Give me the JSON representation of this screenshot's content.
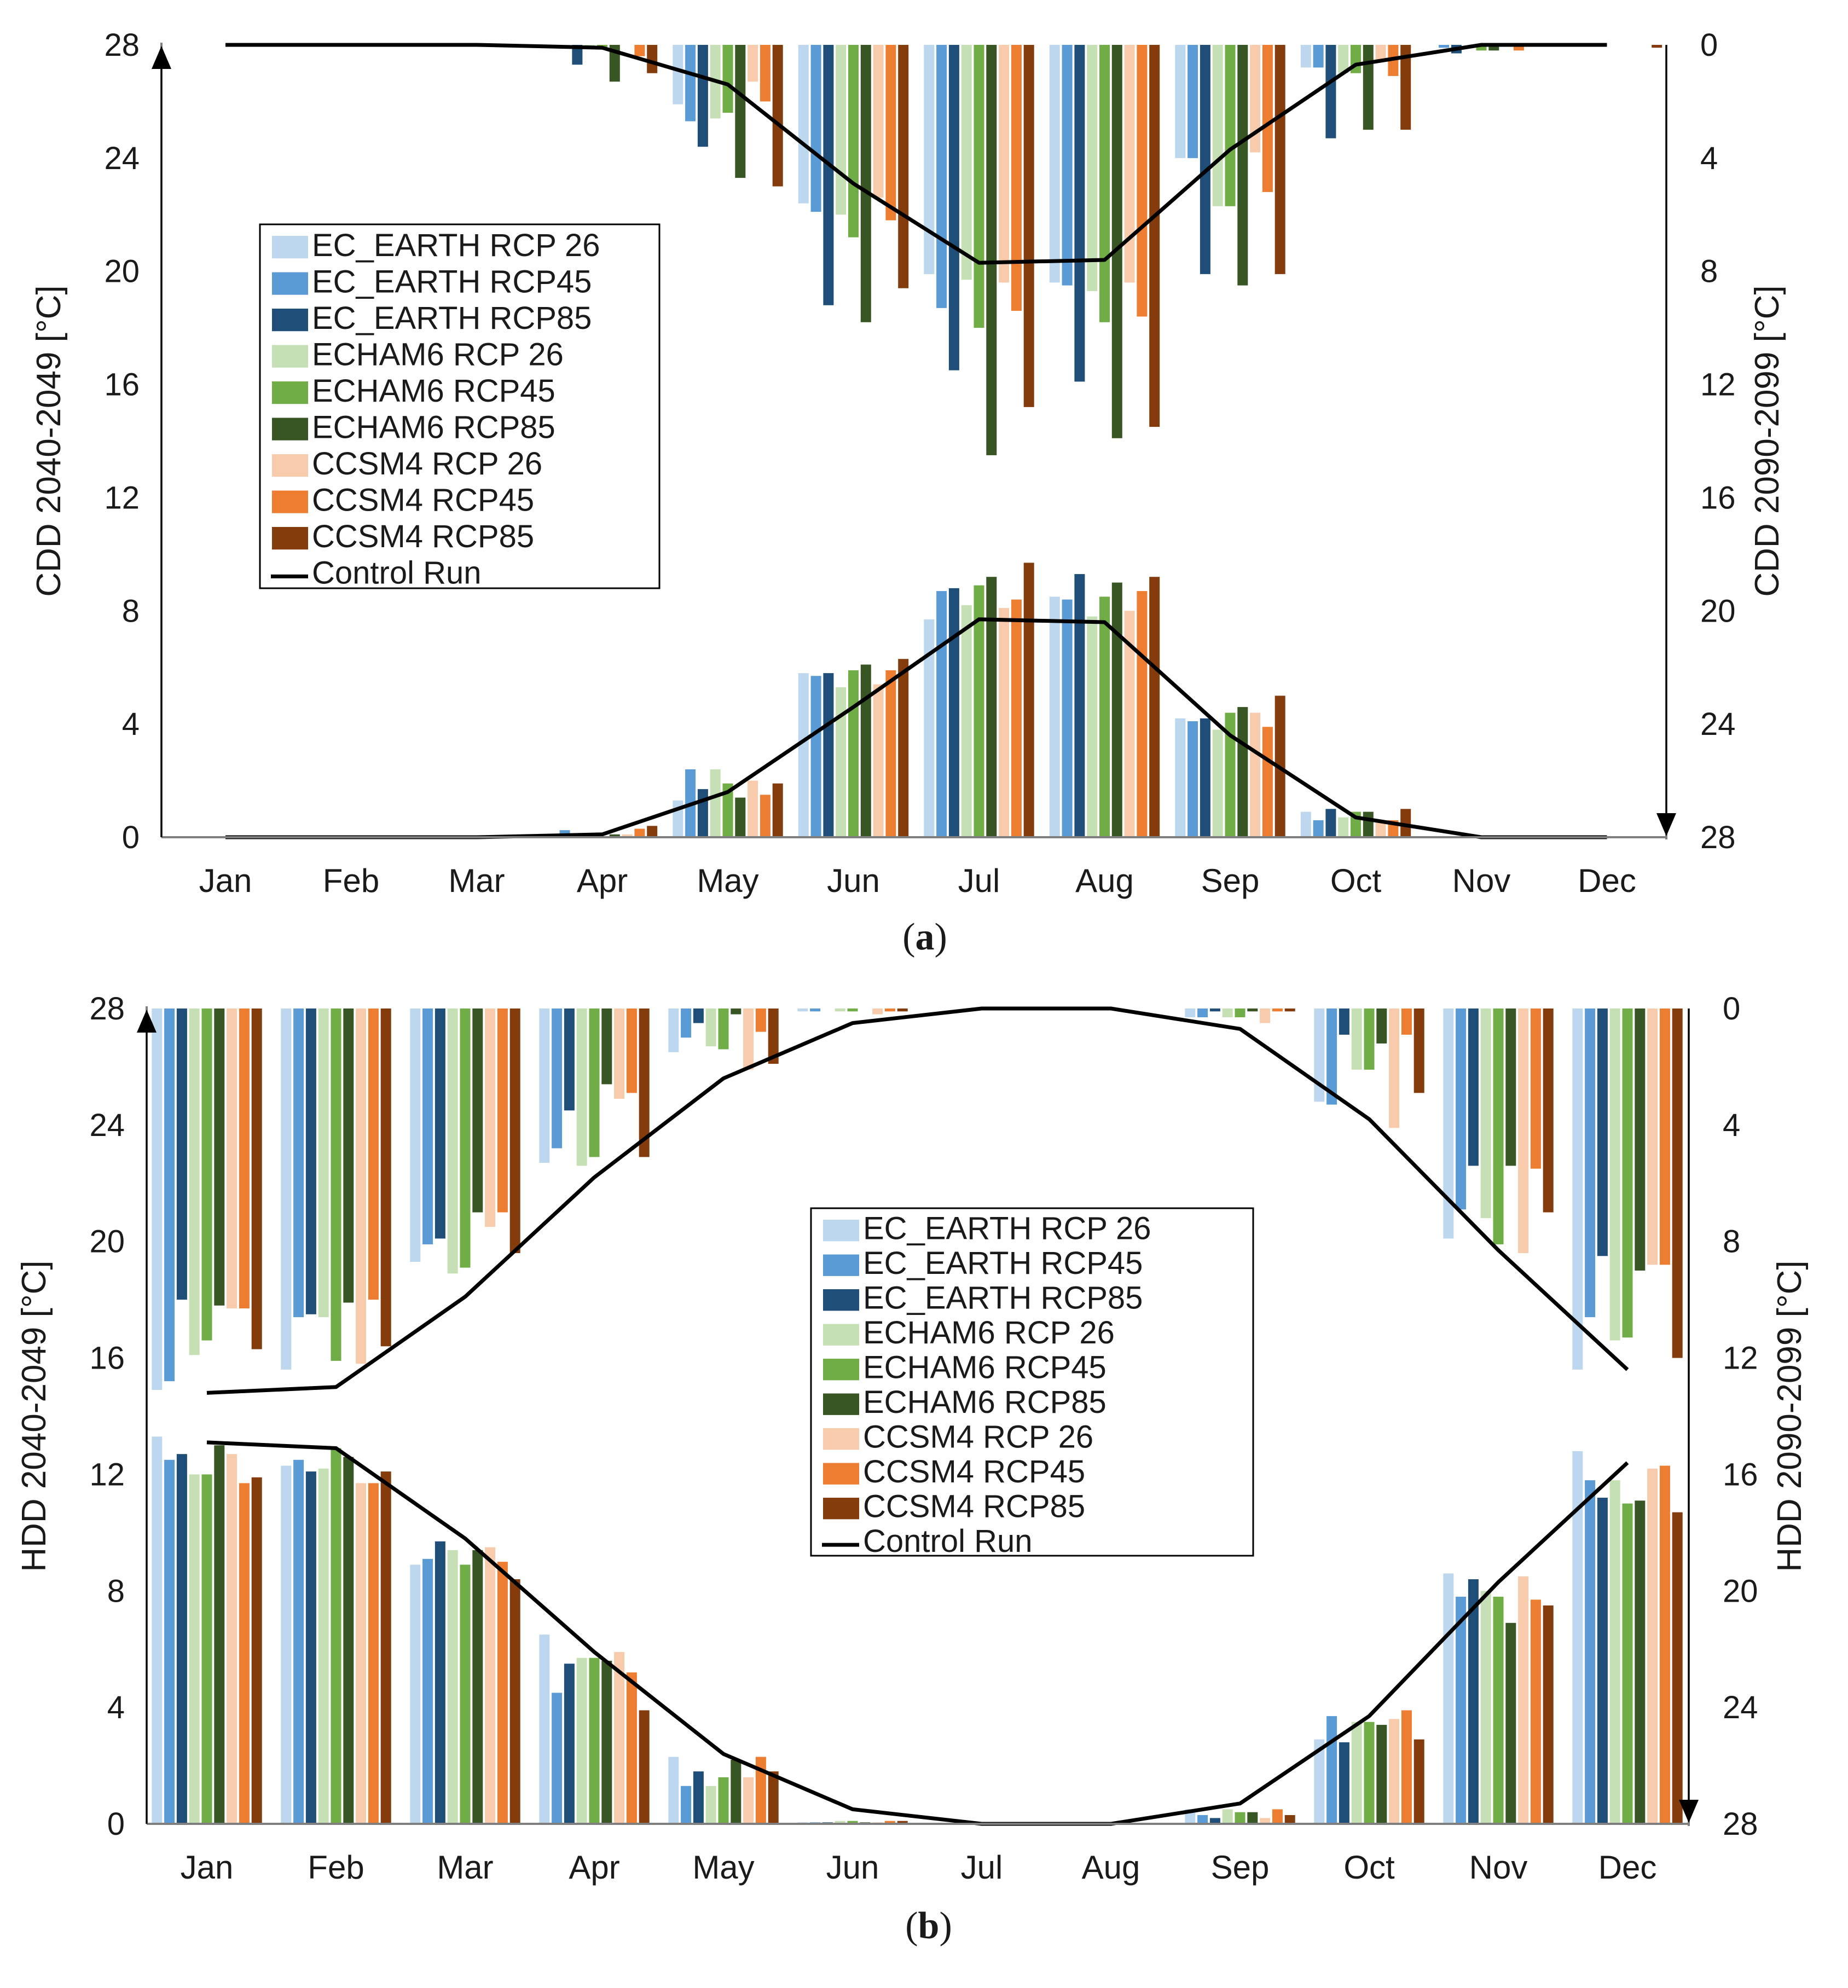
{
  "colors": {
    "EC_EARTH RCP 26": "#bdd7ee",
    "EC_EARTH RCP45": "#5b9bd5",
    "EC_EARTH RCP85": "#1f4e79",
    "ECHAM6 RCP 26": "#c5e0b4",
    "ECHAM6 RCP45": "#70ad47",
    "ECHAM6 RCP85": "#375623",
    "CCSM4 RCP 26": "#f8cbad",
    "CCSM4 RCP45": "#ed7d31",
    "CCSM4 RCP85": "#843c0c",
    "Control Run": "#000000"
  },
  "chart_data": [
    {
      "type": "bar",
      "panel": "(a)",
      "panel_letter": "a",
      "categories": [
        "Jan",
        "Feb",
        "Mar",
        "Apr",
        "May",
        "Jun",
        "Jul",
        "Aug",
        "Sep",
        "Oct",
        "Nov",
        "Dec"
      ],
      "ylabel_left": "CDD 2040-2049 [°C]",
      "ylabel_right": "CDD 2090-2099 [°C]",
      "ylim_left": [
        0,
        28
      ],
      "ylim_right": [
        0,
        28
      ],
      "yticks_left": [
        0,
        4,
        8,
        12,
        16,
        20,
        24,
        28
      ],
      "yticks_right": [
        0,
        4,
        8,
        12,
        16,
        20,
        24,
        28
      ],
      "right_axis_inverted": true,
      "legend_position": "upper-left",
      "legend": [
        "EC_EARTH RCP 26",
        "EC_EARTH RCP45",
        "EC_EARTH RCP85",
        "ECHAM6 RCP 26",
        "ECHAM6 RCP45",
        "ECHAM6 RCP85",
        "CCSM4 RCP 26",
        "CCSM4 RCP45",
        "CCSM4 RCP85",
        "Control Run"
      ],
      "series_2040_2049_left_axis": [
        {
          "name": "EC_EARTH RCP 26",
          "values": [
            0,
            0,
            0,
            0,
            1.3,
            5.8,
            7.7,
            8.5,
            4.2,
            0.9,
            0,
            0
          ]
        },
        {
          "name": "EC_EARTH RCP45",
          "values": [
            0,
            0,
            0,
            0.25,
            2.4,
            5.7,
            8.7,
            8.4,
            4.1,
            0.6,
            0,
            0
          ]
        },
        {
          "name": "EC_EARTH RCP85",
          "values": [
            0,
            0,
            0,
            0.1,
            1.7,
            5.8,
            8.8,
            9.3,
            4.2,
            1.0,
            0,
            0
          ]
        },
        {
          "name": "ECHAM6 RCP 26",
          "values": [
            0,
            0,
            0,
            0,
            2.4,
            5.3,
            8.2,
            7.8,
            3.8,
            0.7,
            0,
            0
          ]
        },
        {
          "name": "ECHAM6 RCP45",
          "values": [
            0,
            0,
            0,
            0,
            1.9,
            5.9,
            8.9,
            8.5,
            4.4,
            0.9,
            0,
            0
          ]
        },
        {
          "name": "ECHAM6 RCP85",
          "values": [
            0,
            0,
            0,
            0.1,
            1.4,
            6.1,
            9.2,
            9.0,
            4.6,
            0.9,
            0,
            0
          ]
        },
        {
          "name": "CCSM4 RCP 26",
          "values": [
            0,
            0,
            0,
            0.1,
            2.0,
            5.4,
            8.1,
            8.0,
            4.4,
            0.6,
            0,
            0
          ]
        },
        {
          "name": "CCSM4 RCP45",
          "values": [
            0,
            0,
            0,
            0.3,
            1.5,
            5.9,
            8.4,
            8.7,
            3.9,
            0.6,
            0,
            0
          ]
        },
        {
          "name": "CCSM4 RCP85",
          "values": [
            0,
            0,
            0,
            0.4,
            1.9,
            6.3,
            9.7,
            9.2,
            5.0,
            1.0,
            0,
            0
          ]
        }
      ],
      "control_2040_2049_left_axis": [
        0,
        0,
        0,
        0.1,
        1.6,
        4.6,
        7.7,
        7.6,
        3.6,
        0.7,
        0,
        0
      ],
      "series_2090_2099_right_axis": [
        {
          "name": "EC_EARTH RCP 26",
          "values": [
            0,
            0,
            0,
            0,
            2.1,
            5.6,
            8.1,
            8.4,
            4.0,
            0.8,
            0,
            0
          ]
        },
        {
          "name": "EC_EARTH RCP45",
          "values": [
            0,
            0,
            0,
            0,
            2.7,
            5.9,
            9.3,
            8.5,
            4.0,
            0.8,
            0.1,
            0
          ]
        },
        {
          "name": "EC_EARTH RCP85",
          "values": [
            0,
            0,
            0,
            0.7,
            3.6,
            9.2,
            11.5,
            11.9,
            8.1,
            3.3,
            0.3,
            0
          ]
        },
        {
          "name": "ECHAM6 RCP 26",
          "values": [
            0,
            0,
            0,
            0.1,
            2.6,
            6.0,
            8.3,
            8.7,
            5.7,
            1.0,
            0,
            0
          ]
        },
        {
          "name": "ECHAM6 RCP45",
          "values": [
            0,
            0,
            0,
            0.1,
            2.4,
            6.8,
            10.0,
            9.8,
            5.7,
            1.0,
            0.2,
            0
          ]
        },
        {
          "name": "ECHAM6 RCP85",
          "values": [
            0,
            0,
            0,
            1.3,
            4.7,
            9.8,
            14.5,
            13.9,
            8.5,
            3.0,
            0.2,
            0
          ]
        },
        {
          "name": "CCSM4 RCP 26",
          "values": [
            0,
            0,
            0,
            0,
            1.3,
            5.4,
            8.4,
            8.4,
            3.8,
            0.6,
            0,
            0
          ]
        },
        {
          "name": "CCSM4 RCP45",
          "values": [
            0,
            0,
            0,
            0.4,
            2.0,
            6.2,
            9.4,
            9.6,
            5.2,
            1.1,
            0.2,
            0
          ]
        },
        {
          "name": "CCSM4 RCP85",
          "values": [
            0,
            0,
            0,
            1.0,
            5.0,
            8.6,
            12.8,
            13.5,
            8.1,
            3.0,
            0,
            0.1
          ]
        }
      ],
      "control_2090_2099_right_axis": [
        0,
        0,
        0,
        0.1,
        1.4,
        4.9,
        7.7,
        7.6,
        3.7,
        0.7,
        0,
        0
      ]
    },
    {
      "type": "bar",
      "panel": "(b)",
      "panel_letter": "b",
      "categories": [
        "Jan",
        "Feb",
        "Mar",
        "Apr",
        "May",
        "Jun",
        "Jul",
        "Aug",
        "Sep",
        "Oct",
        "Nov",
        "Dec"
      ],
      "ylabel_left": "HDD 2040-2049 [°C]",
      "ylabel_right": "HDD 2090-2099 [°C]",
      "ylim_left": [
        0,
        28
      ],
      "ylim_right": [
        0,
        28
      ],
      "yticks_left": [
        0,
        4,
        8,
        12,
        16,
        20,
        24,
        28
      ],
      "yticks_right": [
        0,
        4,
        8,
        12,
        16,
        20,
        24,
        28
      ],
      "right_axis_inverted": true,
      "legend_position": "center",
      "legend": [
        "EC_EARTH RCP 26",
        "EC_EARTH RCP45",
        "EC_EARTH RCP85",
        "ECHAM6 RCP 26",
        "ECHAM6 RCP45",
        "ECHAM6 RCP85",
        "CCSM4 RCP 26",
        "CCSM4 RCP45",
        "CCSM4 RCP85",
        "Control Run"
      ],
      "series_2040_2049_left_axis": [
        {
          "name": "EC_EARTH RCP 26",
          "values": [
            13.3,
            12.3,
            8.9,
            6.5,
            2.3,
            0.05,
            0,
            0,
            0.5,
            2.9,
            8.6,
            12.8
          ]
        },
        {
          "name": "EC_EARTH RCP45",
          "values": [
            12.5,
            12.5,
            9.1,
            4.5,
            1.3,
            0.05,
            0,
            0,
            0.3,
            3.7,
            7.8,
            11.8
          ]
        },
        {
          "name": "EC_EARTH RCP85",
          "values": [
            12.7,
            12.1,
            9.7,
            5.5,
            1.8,
            0.05,
            0,
            0,
            0.2,
            2.8,
            8.4,
            11.2
          ]
        },
        {
          "name": "ECHAM6 RCP 26",
          "values": [
            12.0,
            12.2,
            9.4,
            5.7,
            1.3,
            0.1,
            0,
            0,
            0.5,
            3.5,
            8.0,
            11.8
          ]
        },
        {
          "name": "ECHAM6 RCP45",
          "values": [
            12.0,
            12.9,
            8.9,
            5.7,
            1.6,
            0.1,
            0,
            0,
            0.4,
            3.5,
            7.8,
            11.0
          ]
        },
        {
          "name": "ECHAM6 RCP85",
          "values": [
            13.0,
            12.6,
            9.4,
            5.6,
            2.2,
            0.05,
            0,
            0,
            0.4,
            3.4,
            6.9,
            11.1
          ]
        },
        {
          "name": "CCSM4 RCP 26",
          "values": [
            12.7,
            11.7,
            9.5,
            5.9,
            1.6,
            0.05,
            0,
            0,
            0.2,
            3.6,
            8.5,
            12.2
          ]
        },
        {
          "name": "CCSM4 RCP45",
          "values": [
            11.7,
            11.7,
            9.0,
            5.2,
            2.3,
            0.1,
            0,
            0,
            0.5,
            3.9,
            7.7,
            12.3
          ]
        },
        {
          "name": "CCSM4 RCP85",
          "values": [
            11.9,
            12.1,
            8.4,
            3.9,
            1.8,
            0.1,
            0,
            0,
            0.3,
            2.9,
            7.5,
            10.7
          ]
        }
      ],
      "control_2040_2049_left_axis": [
        13.1,
        12.9,
        9.8,
        5.9,
        2.4,
        0.5,
        0,
        0,
        0.7,
        3.7,
        8.3,
        12.4
      ],
      "series_2090_2099_right_axis": [
        {
          "name": "EC_EARTH RCP 26",
          "values": [
            13.1,
            12.4,
            8.7,
            5.3,
            1.5,
            0.1,
            0,
            0,
            0.3,
            3.2,
            7.9,
            12.4
          ]
        },
        {
          "name": "EC_EARTH RCP45",
          "values": [
            12.8,
            10.6,
            8.1,
            4.8,
            1.0,
            0.1,
            0,
            0,
            0.3,
            3.3,
            6.9,
            10.6
          ]
        },
        {
          "name": "EC_EARTH RCP85",
          "values": [
            10.0,
            10.5,
            7.9,
            3.5,
            0.5,
            0,
            0,
            0,
            0.1,
            0.9,
            5.4,
            8.5
          ]
        },
        {
          "name": "ECHAM6 RCP 26",
          "values": [
            11.9,
            10.6,
            9.1,
            5.4,
            1.3,
            0.1,
            0,
            0,
            0.3,
            2.1,
            7.2,
            11.4
          ]
        },
        {
          "name": "ECHAM6 RCP45",
          "values": [
            11.4,
            12.1,
            8.9,
            5.1,
            1.4,
            0.1,
            0,
            0,
            0.3,
            2.1,
            8.1,
            11.3
          ]
        },
        {
          "name": "ECHAM6 RCP85",
          "values": [
            10.2,
            10.1,
            7.0,
            2.6,
            0.2,
            0,
            0,
            0,
            0.1,
            1.2,
            5.4,
            9.0
          ]
        },
        {
          "name": "CCSM4 RCP 26",
          "values": [
            10.3,
            12.2,
            7.5,
            3.1,
            2.1,
            0.2,
            0,
            0,
            0.5,
            4.1,
            8.4,
            8.8
          ]
        },
        {
          "name": "CCSM4 RCP45",
          "values": [
            10.3,
            10.0,
            7.0,
            2.9,
            0.8,
            0.1,
            0,
            0,
            0.1,
            0.9,
            5.5,
            8.8
          ]
        },
        {
          "name": "CCSM4 RCP85",
          "values": [
            11.7,
            11.6,
            8.4,
            5.1,
            1.9,
            0.1,
            0,
            0,
            0.1,
            2.9,
            7.0,
            12.0
          ]
        }
      ],
      "control_2090_2099_right_axis": [
        13.2,
        13.0,
        9.9,
        5.8,
        2.4,
        0.5,
        0,
        0,
        0.7,
        3.8,
        8.3,
        12.4
      ]
    }
  ]
}
